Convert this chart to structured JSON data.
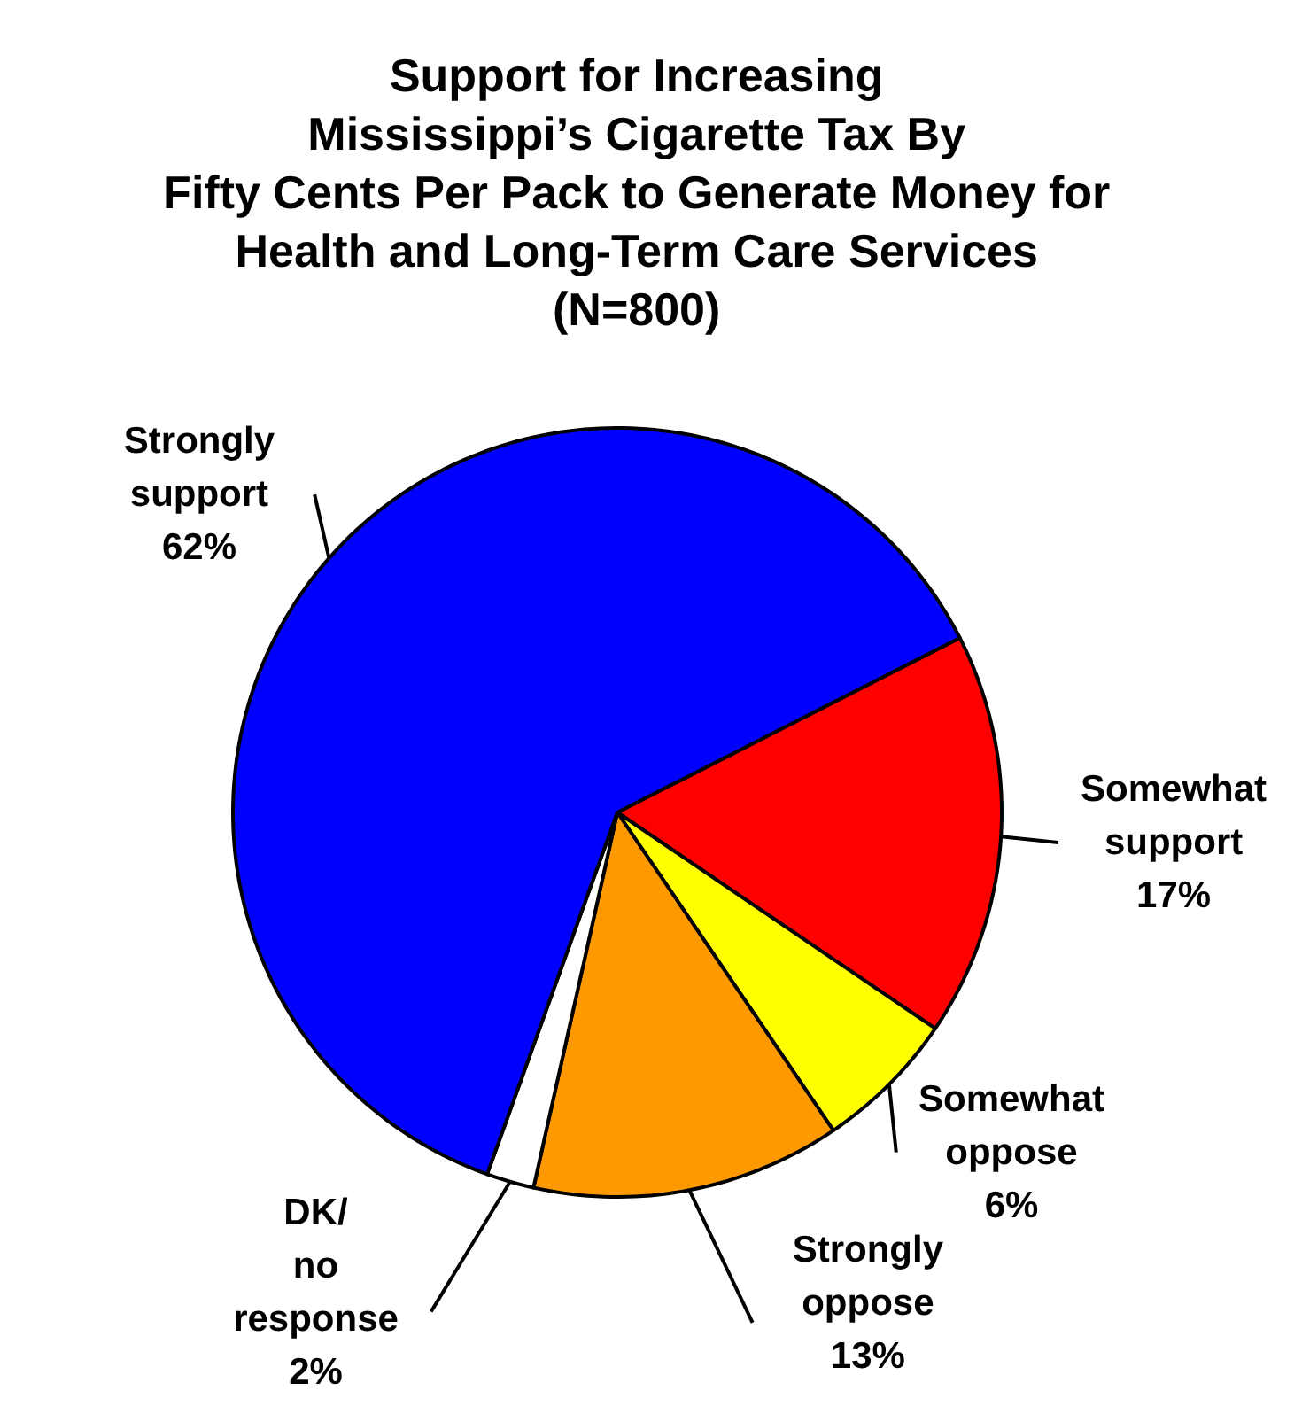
{
  "chart_data": {
    "type": "pie",
    "title": "Support for Increasing\nMississippi’s Cigarette Tax By\nFifty Cents Per Pack to Generate Money for\nHealth and Long-Term Care Services\n(N=800)",
    "categories": [
      "Somewhat support",
      "Somewhat oppose",
      "Strongly oppose",
      "DK/ no response",
      "Strongly support"
    ],
    "values": [
      17,
      6,
      13,
      2,
      62
    ],
    "value_labels": [
      "17%",
      "6%",
      "13%",
      "2%",
      "62%"
    ],
    "colors": [
      "#ff0000",
      "#ffff00",
      "#ff9900",
      "#ffffff",
      "#0000ff"
    ]
  }
}
